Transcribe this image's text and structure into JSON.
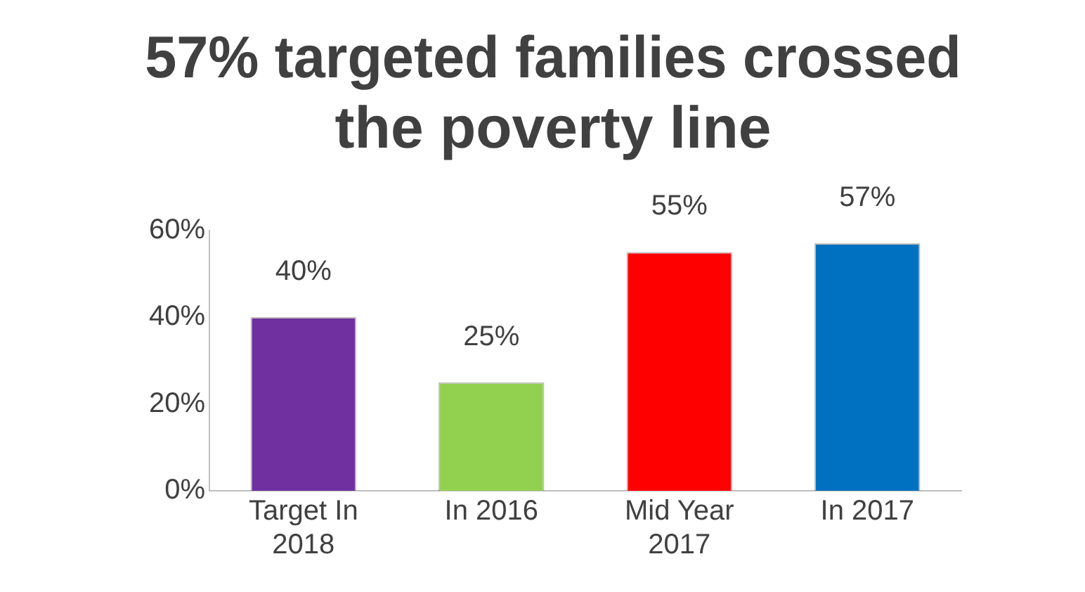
{
  "chart_data": {
    "type": "bar",
    "title": "57% targeted families crossed the poverty line",
    "categories": [
      "Target In 2018",
      "In 2016",
      "Mid Year 2017",
      "In 2017"
    ],
    "values": [
      40,
      25,
      55,
      57
    ],
    "colors": [
      "#7030a0",
      "#92d050",
      "#ff0000",
      "#0070c0"
    ],
    "value_labels": [
      "40%",
      "25%",
      "55%",
      "57%"
    ],
    "ylim": [
      0,
      60
    ],
    "yticks": [
      {
        "value": 0,
        "label": "0%"
      },
      {
        "value": 20,
        "label": "20%"
      },
      {
        "value": 40,
        "label": "40%"
      },
      {
        "value": 60,
        "label": "60%"
      }
    ],
    "grid": false,
    "legend": false
  }
}
